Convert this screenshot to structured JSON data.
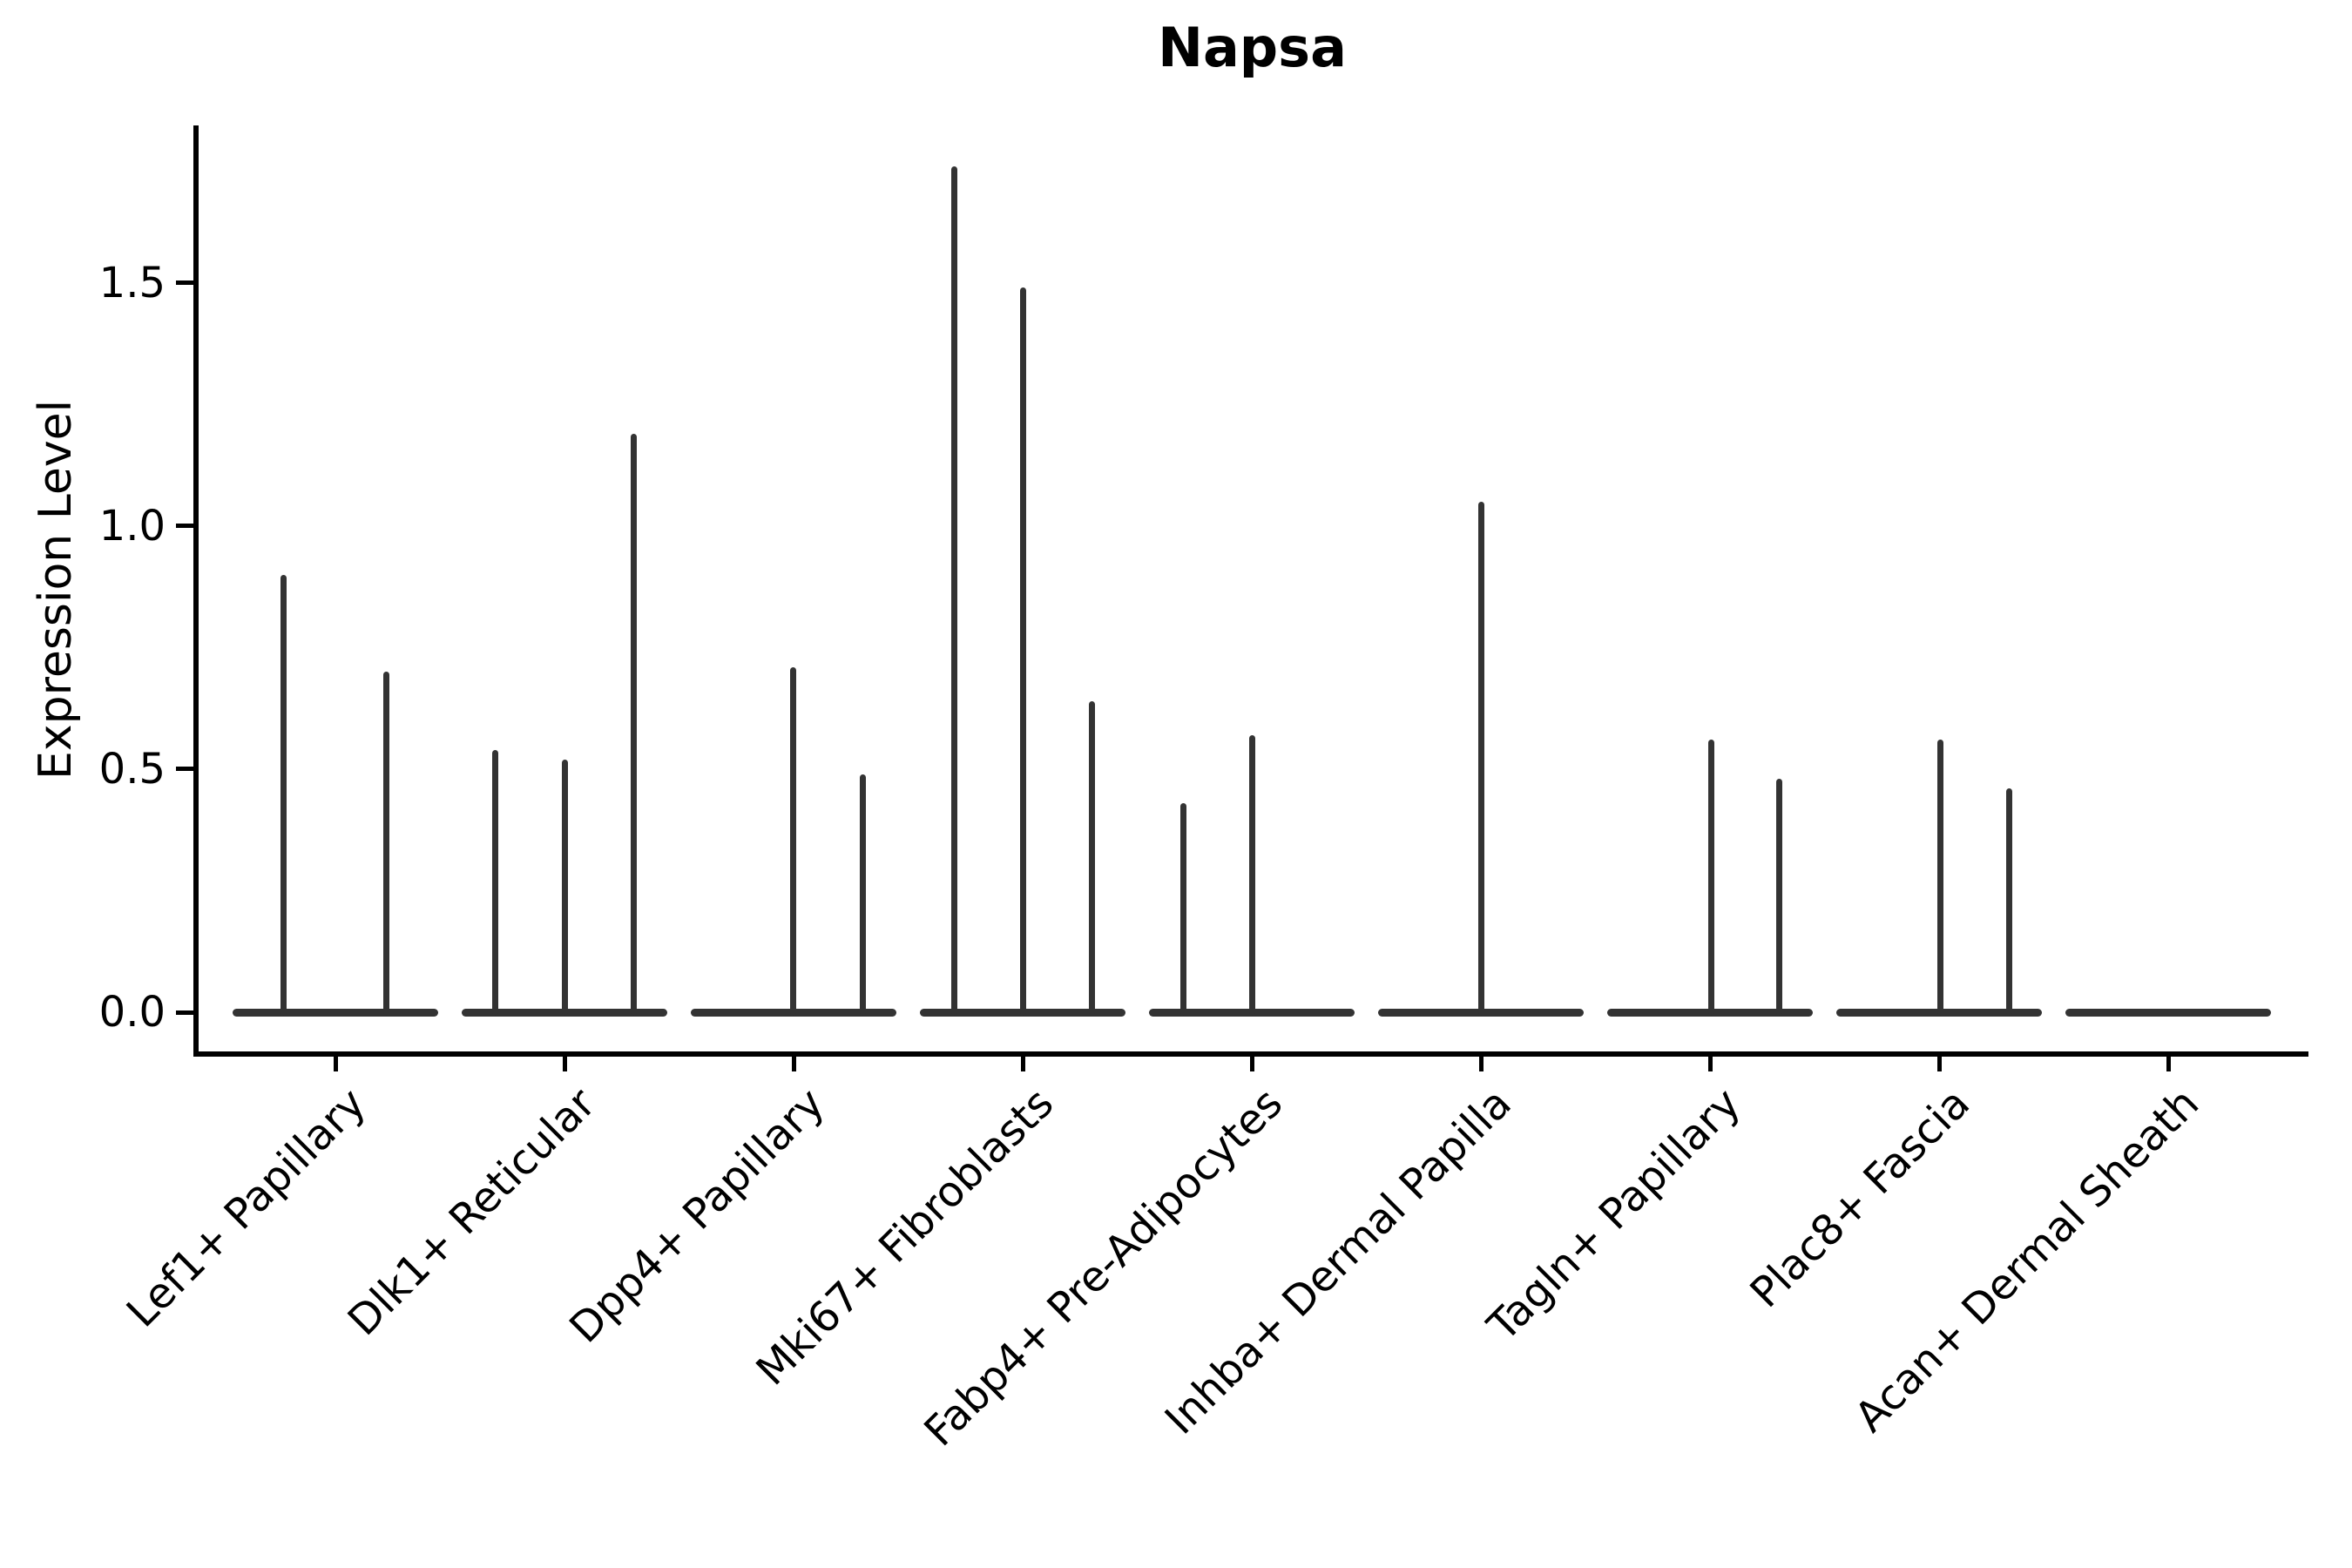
{
  "title": "Napsa",
  "ylabel": "Expression Level",
  "colors": {
    "violin": "#333333",
    "axis": "#000000",
    "background": "#ffffff",
    "text": "#000000"
  },
  "chart_data": {
    "type": "violin",
    "title": "Napsa",
    "xlabel": "",
    "ylabel": "Expression Level",
    "ylim": [
      -0.086,
      1.824
    ],
    "yticks": [
      0.0,
      0.5,
      1.0,
      1.5
    ],
    "ytick_labels": [
      "0.0",
      "0.5",
      "1.0",
      "1.5"
    ],
    "grid": false,
    "legend": false,
    "categories": [
      "Lef1+ Papillary",
      "Dlk1+ Reticular",
      "Dpp4+ Papillary",
      "Mki67+ Fibroblasts",
      "Fabp4+ Pre-Adipocytes",
      "Inhba+ Dermal Papilla",
      "Tagln+ Papillary",
      "Plac8+ Fascia",
      "Acan+ Dermal Sheath"
    ],
    "groups": [
      {
        "label": "Lef1+ Papillary",
        "baseline": true,
        "spikes": [
          {
            "dx": -60,
            "value": 0.9
          },
          {
            "dx": 58,
            "value": 0.7
          }
        ]
      },
      {
        "label": "Dlk1+ Reticular",
        "baseline": true,
        "spikes": [
          {
            "dx": -80,
            "value": 0.54
          },
          {
            "dx": 0,
            "value": 0.52
          },
          {
            "dx": 79,
            "value": 1.19
          }
        ]
      },
      {
        "label": "Dpp4+ Papillary",
        "baseline": true,
        "spikes": [
          {
            "dx": -1,
            "value": 0.71
          },
          {
            "dx": 79,
            "value": 0.49
          }
        ]
      },
      {
        "label": "Mki67+ Fibroblasts",
        "baseline": true,
        "spikes": [
          {
            "dx": -79,
            "value": 1.74
          },
          {
            "dx": 0,
            "value": 1.49
          },
          {
            "dx": 79,
            "value": 0.64
          }
        ]
      },
      {
        "label": "Fabp4+ Pre-Adipocytes",
        "baseline": true,
        "spikes": [
          {
            "dx": -79,
            "value": 0.43
          },
          {
            "dx": 0,
            "value": 0.57
          }
        ]
      },
      {
        "label": "Inhba+ Dermal Papilla",
        "baseline": true,
        "spikes": [
          {
            "dx": 0,
            "value": 1.05
          }
        ]
      },
      {
        "label": "Tagln+ Papillary",
        "baseline": true,
        "spikes": [
          {
            "dx": 1,
            "value": 0.56
          },
          {
            "dx": 79,
            "value": 0.48
          }
        ]
      },
      {
        "label": "Plac8+ Fascia",
        "baseline": true,
        "spikes": [
          {
            "dx": 1,
            "value": 0.56
          },
          {
            "dx": 80,
            "value": 0.46
          }
        ]
      },
      {
        "label": "Acan+ Dermal Sheath",
        "baseline": true,
        "spikes": []
      }
    ]
  }
}
